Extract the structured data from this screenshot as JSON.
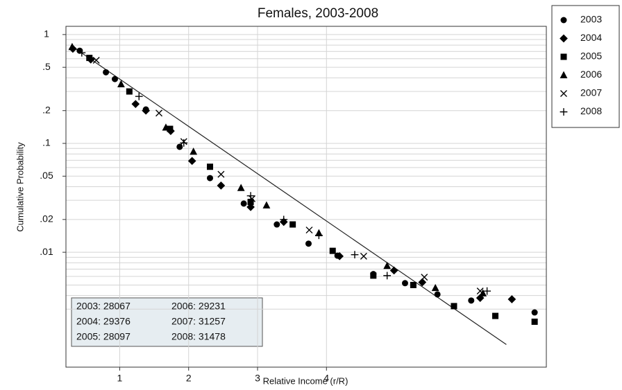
{
  "chart_data": {
    "type": "scatter",
    "title": "Females, 2003-2008",
    "x_label": "Relative Income (r/R)",
    "y_label": "Cumulative Probability",
    "xlim": [
      0.22,
      7.19
    ],
    "xticks": [
      1,
      2,
      3,
      4
    ],
    "ylim": [
      0.00088,
      1.19
    ],
    "y_scale": "log",
    "yticks": [
      1,
      {
        "value": 0.5,
        "label": ".5"
      },
      {
        "value": 0.2,
        "label": ".2"
      },
      {
        "value": 0.1,
        "label": ".1"
      },
      {
        "value": 0.05,
        "label": ".05"
      },
      {
        "value": 0.02,
        "label": ".02"
      },
      {
        "value": 0.01,
        "label": ".01"
      }
    ],
    "y_minor_grid": [
      0.9,
      0.8,
      0.7,
      0.6,
      0.4,
      0.3,
      0.09,
      0.08,
      0.07,
      0.06,
      0.04,
      0.03,
      0.009,
      0.008,
      0.007,
      0.006,
      0.005,
      0.004,
      0.003
    ],
    "grid": true,
    "legend": "outside-right",
    "fit_line": {
      "x": [
        0.32,
        6.61
      ],
      "y": [
        0.77,
        0.00142
      ],
      "color": "#222222"
    },
    "series": [
      {
        "name": "2003",
        "marker": "circle",
        "color": "#000000",
        "x": [
          0.42,
          0.8,
          0.93,
          1.38,
          1.87,
          2.31,
          2.8,
          3.28,
          3.74,
          4.16,
          4.68,
          5.14,
          5.61,
          6.1,
          7.02
        ],
        "values": [
          0.71,
          0.45,
          0.39,
          0.205,
          0.093,
          0.048,
          0.028,
          0.018,
          0.012,
          0.0093,
          0.0063,
          0.0052,
          0.0041,
          0.0036,
          0.0028
        ]
      },
      {
        "name": "2004",
        "marker": "diamond",
        "color": "#000000",
        "x": [
          0.32,
          0.58,
          1.23,
          1.38,
          1.74,
          2.05,
          2.47,
          2.9,
          3.38,
          4.19,
          4.98,
          5.39,
          6.23,
          6.69
        ],
        "values": [
          0.74,
          0.59,
          0.23,
          0.2,
          0.13,
          0.069,
          0.041,
          0.026,
          0.019,
          0.0092,
          0.0068,
          0.0053,
          0.0038,
          0.0037
        ]
      },
      {
        "name": "2005",
        "marker": "square",
        "color": "#000000",
        "x": [
          0.56,
          1.14,
          1.73,
          2.31,
          2.9,
          3.51,
          4.09,
          4.68,
          5.26,
          5.85,
          6.45,
          7.02
        ],
        "values": [
          0.61,
          0.3,
          0.136,
          0.061,
          0.029,
          0.018,
          0.0103,
          0.0061,
          0.005,
          0.0032,
          0.0026,
          0.0023
        ]
      },
      {
        "name": "2006",
        "marker": "triangle",
        "color": "#000000",
        "x": [
          0.31,
          1.02,
          1.67,
          2.07,
          2.76,
          3.13,
          3.89,
          4.88,
          5.58,
          6.27
        ],
        "values": [
          0.77,
          0.35,
          0.14,
          0.084,
          0.039,
          0.027,
          0.015,
          0.0075,
          0.0047,
          0.0042
        ]
      },
      {
        "name": "2007",
        "marker": "x",
        "color": "#000000",
        "x": [
          0.66,
          1.57,
          1.93,
          2.47,
          2.92,
          3.75,
          4.54,
          5.42,
          6.23
        ],
        "values": [
          0.58,
          0.19,
          0.104,
          0.052,
          0.031,
          0.016,
          0.0092,
          0.0059,
          0.0044
        ]
      },
      {
        "name": "2008",
        "marker": "plus",
        "color": "#000000",
        "x": [
          0.45,
          1.28,
          1.93,
          2.9,
          3.38,
          3.89,
          4.41,
          4.88,
          6.33
        ],
        "values": [
          0.68,
          0.27,
          0.101,
          0.033,
          0.02,
          0.0143,
          0.0095,
          0.0061,
          0.0044
        ]
      }
    ],
    "annotations": [
      "2003:  28067",
      "2004:  29376",
      "2005:  28097",
      "2006:  29231",
      "2007:  31257",
      "2008:  31478"
    ]
  }
}
